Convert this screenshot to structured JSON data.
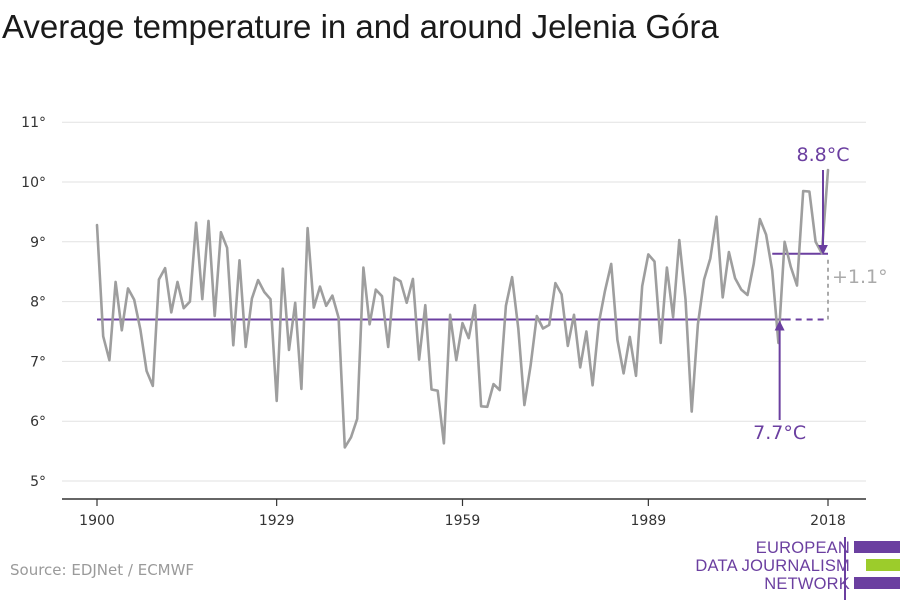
{
  "title": "Average temperature in and around Jelenia Góra",
  "source": "Source: EDJNet / ECMWF",
  "logo": {
    "lines": [
      "EUROPEAN",
      "DATA JOURNALISM",
      "NETWORK"
    ],
    "bar_colors": [
      "#6b3fa0",
      "#9ccc2b",
      "#6b3fa0"
    ]
  },
  "colors": {
    "series": "#9e9e9e",
    "reference": "#6b3fa0",
    "grid": "#e2e2e2",
    "axis": "#333333",
    "difference": "#aaaaaa"
  },
  "chart_data": {
    "type": "line",
    "title": "Average temperature in and around Jelenia Góra",
    "xlabel": "",
    "ylabel": "",
    "ylim": [
      4.7,
      11
    ],
    "xlim": [
      1896,
      2022
    ],
    "y_ticks": [
      5,
      6,
      7,
      8,
      9,
      10,
      11
    ],
    "y_tick_labels": [
      "5°",
      "6°",
      "7°",
      "8°",
      "9°",
      "10°",
      "11°"
    ],
    "x_ticks": [
      1900,
      1929,
      1959,
      1989,
      2018
    ],
    "x_tick_labels": [
      "1900",
      "1929",
      "1959",
      "1989",
      "2018"
    ],
    "grid": "horizontal",
    "series": [
      {
        "x": [
          1900,
          1901,
          1902,
          1903,
          1904,
          1905,
          1906,
          1907,
          1908,
          1909,
          1910,
          1911,
          1912,
          1913,
          1914,
          1915,
          1916,
          1917,
          1918,
          1919,
          1920,
          1921,
          1922,
          1923,
          1924,
          1925,
          1926,
          1927,
          1928,
          1929,
          1930,
          1931,
          1932,
          1933,
          1934,
          1935,
          1936,
          1937,
          1938,
          1939,
          1940,
          1941,
          1942,
          1943,
          1944,
          1945,
          1946,
          1947,
          1948,
          1949,
          1950,
          1951,
          1952,
          1953,
          1954,
          1955,
          1956,
          1957,
          1958,
          1959,
          1960,
          1961,
          1962,
          1963,
          1964,
          1965,
          1966,
          1967,
          1968,
          1969,
          1970,
          1971,
          1972,
          1973,
          1974,
          1975,
          1976,
          1977,
          1978,
          1979,
          1980,
          1981,
          1982,
          1983,
          1984,
          1985,
          1986,
          1987,
          1988,
          1989,
          1990,
          1991,
          1992,
          1993,
          1994,
          1995,
          1996,
          1997,
          1998,
          1999,
          2000,
          2001,
          2002,
          2003,
          2004,
          2005,
          2006,
          2007,
          2008,
          2009,
          2010,
          2011,
          2012,
          2013,
          2014,
          2015,
          2016,
          2017,
          2018
        ],
        "values": [
          9.28,
          7.42,
          7.02,
          8.33,
          7.52,
          8.22,
          8.03,
          7.53,
          6.84,
          6.59,
          8.37,
          8.56,
          7.82,
          8.33,
          7.89,
          8.0,
          9.32,
          8.04,
          9.35,
          7.76,
          9.16,
          8.9,
          7.27,
          8.69,
          7.24,
          8.05,
          8.36,
          8.16,
          8.04,
          6.34,
          8.55,
          7.19,
          7.98,
          6.54,
          9.23,
          7.9,
          8.25,
          7.93,
          8.1,
          7.73,
          5.56,
          5.73,
          6.04,
          8.57,
          7.62,
          8.2,
          8.09,
          7.24,
          8.4,
          8.34,
          7.98,
          8.38,
          7.03,
          7.94,
          6.53,
          6.51,
          5.63,
          7.78,
          7.02,
          7.64,
          7.39,
          7.94,
          6.25,
          6.24,
          6.62,
          6.52,
          7.93,
          8.41,
          7.55,
          6.27,
          6.93,
          7.76,
          7.55,
          7.61,
          8.31,
          8.12,
          7.26,
          7.78,
          6.9,
          7.5,
          6.6,
          7.64,
          8.18,
          8.63,
          7.36,
          6.8,
          7.41,
          6.76,
          8.26,
          8.79,
          8.67,
          7.31,
          8.57,
          7.74,
          9.03,
          8.04,
          6.16,
          7.62,
          8.37,
          8.72,
          9.42,
          8.07,
          8.83,
          8.39,
          8.2,
          8.11,
          8.63,
          9.38,
          9.12,
          8.52,
          7.31,
          9.0,
          8.58,
          8.27,
          9.85,
          9.84,
          9.0,
          8.81,
          10.2
        ]
      }
    ],
    "reference": {
      "baseline_value": 7.7,
      "baseline_label": "7.7°C",
      "baseline_start": 1900,
      "baseline_end": 2011,
      "dashed_end": 2018,
      "recent_value": 8.8,
      "recent_label": "8.8°C",
      "recent_start": 2009,
      "recent_end": 2018,
      "difference_label": "+1.1°"
    }
  }
}
